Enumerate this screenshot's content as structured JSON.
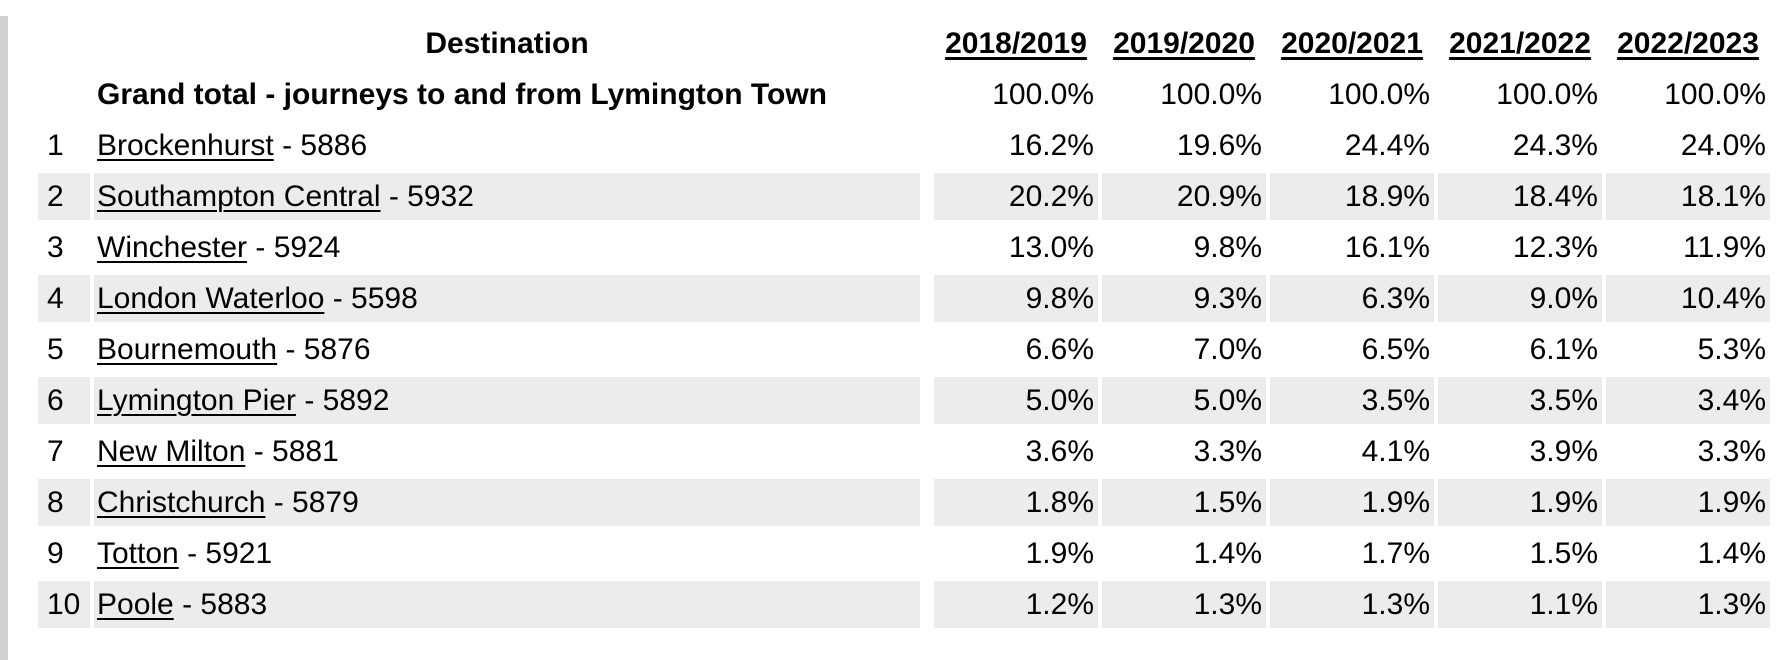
{
  "colors": {
    "row_stripe": "#ececec",
    "left_strip": "#d0d0d0",
    "text": "#000000"
  },
  "table": {
    "destination_header": "Destination",
    "year_headers": [
      "2018/2019",
      "2019/2020",
      "2020/2021",
      "2021/2022",
      "2022/2023"
    ],
    "grand_total": {
      "label": "Grand total - journeys to and from Lymington Town",
      "values": [
        "100.0%",
        "100.0%",
        "100.0%",
        "100.0%",
        "100.0%"
      ]
    },
    "rows": [
      {
        "rank": "1",
        "station": "Brockenhurst",
        "rest": " - 5886",
        "values": [
          "16.2%",
          "19.6%",
          "24.4%",
          "24.3%",
          "24.0%"
        ]
      },
      {
        "rank": "2",
        "station": "Southampton Central",
        "rest": " - 5932",
        "values": [
          "20.2%",
          "20.9%",
          "18.9%",
          "18.4%",
          "18.1%"
        ]
      },
      {
        "rank": "3",
        "station": "Winchester",
        "rest": " - 5924",
        "values": [
          "13.0%",
          "9.8%",
          "16.1%",
          "12.3%",
          "11.9%"
        ]
      },
      {
        "rank": "4",
        "station": "London Waterloo",
        "rest": " - 5598",
        "values": [
          "9.8%",
          "9.3%",
          "6.3%",
          "9.0%",
          "10.4%"
        ]
      },
      {
        "rank": "5",
        "station": "Bournemouth",
        "rest": " - 5876",
        "values": [
          "6.6%",
          "7.0%",
          "6.5%",
          "6.1%",
          "5.3%"
        ]
      },
      {
        "rank": "6",
        "station": "Lymington Pier",
        "rest": " - 5892",
        "values": [
          "5.0%",
          "5.0%",
          "3.5%",
          "3.5%",
          "3.4%"
        ]
      },
      {
        "rank": "7",
        "station": "New Milton",
        "rest": " - 5881",
        "values": [
          "3.6%",
          "3.3%",
          "4.1%",
          "3.9%",
          "3.3%"
        ]
      },
      {
        "rank": "8",
        "station": "Christchurch",
        "rest": " - 5879",
        "values": [
          "1.8%",
          "1.5%",
          "1.9%",
          "1.9%",
          "1.9%"
        ]
      },
      {
        "rank": "9",
        "station": "Totton",
        "rest": " - 5921",
        "values": [
          "1.9%",
          "1.4%",
          "1.7%",
          "1.5%",
          "1.4%"
        ]
      },
      {
        "rank": "10",
        "station": "Poole",
        "rest": " - 5883",
        "values": [
          "1.2%",
          "1.3%",
          "1.3%",
          "1.1%",
          "1.3%"
        ]
      }
    ]
  }
}
